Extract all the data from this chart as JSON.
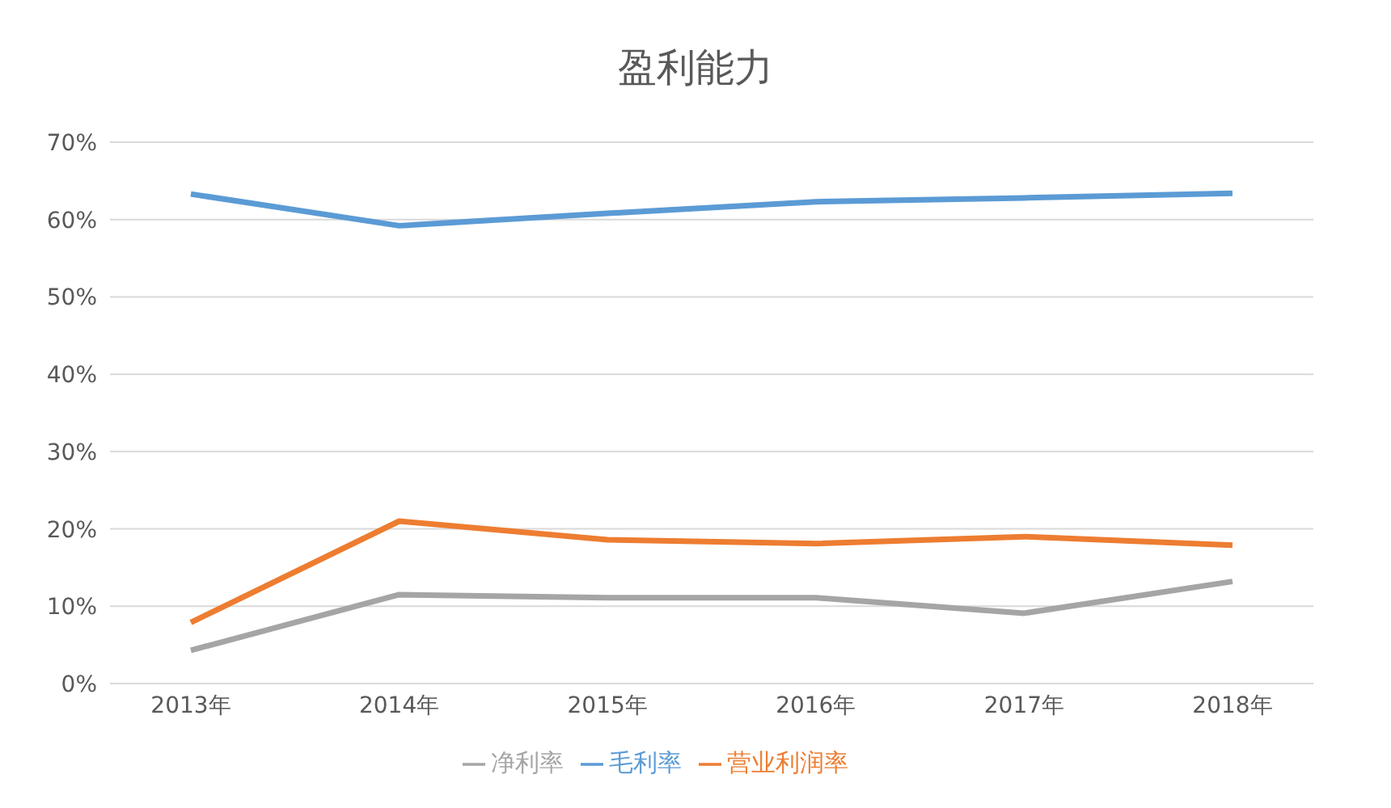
{
  "chart_data": {
    "type": "line",
    "title": "盈利能力",
    "categories": [
      "2013年",
      "2014年",
      "2015年",
      "2016年",
      "2017年",
      "2018年"
    ],
    "series": [
      {
        "name": "毛利率",
        "color": "#5b9bd5",
        "values": [
          63.3,
          59.2,
          60.8,
          62.3,
          62.8,
          63.4
        ]
      },
      {
        "name": "营业利润率",
        "color": "#ed7d31",
        "values": [
          7.9,
          21.0,
          18.6,
          18.1,
          19.0,
          17.9
        ]
      },
      {
        "name": "净利率",
        "color": "#a5a5a5",
        "values": [
          4.3,
          11.5,
          11.1,
          11.1,
          9.1,
          13.2
        ]
      }
    ],
    "ylim": [
      0,
      70
    ],
    "yticks": [
      {
        "value": 0,
        "label": "0%"
      },
      {
        "value": 10,
        "label": "10%"
      },
      {
        "value": 20,
        "label": "20%"
      },
      {
        "value": 30,
        "label": "30%"
      },
      {
        "value": 40,
        "label": "40%"
      },
      {
        "value": 50,
        "label": "50%"
      },
      {
        "value": 60,
        "label": "60%"
      },
      {
        "value": 70,
        "label": "70%"
      }
    ],
    "grid": "y",
    "legend": "bottom",
    "marker": "none",
    "line_style": "solid"
  }
}
